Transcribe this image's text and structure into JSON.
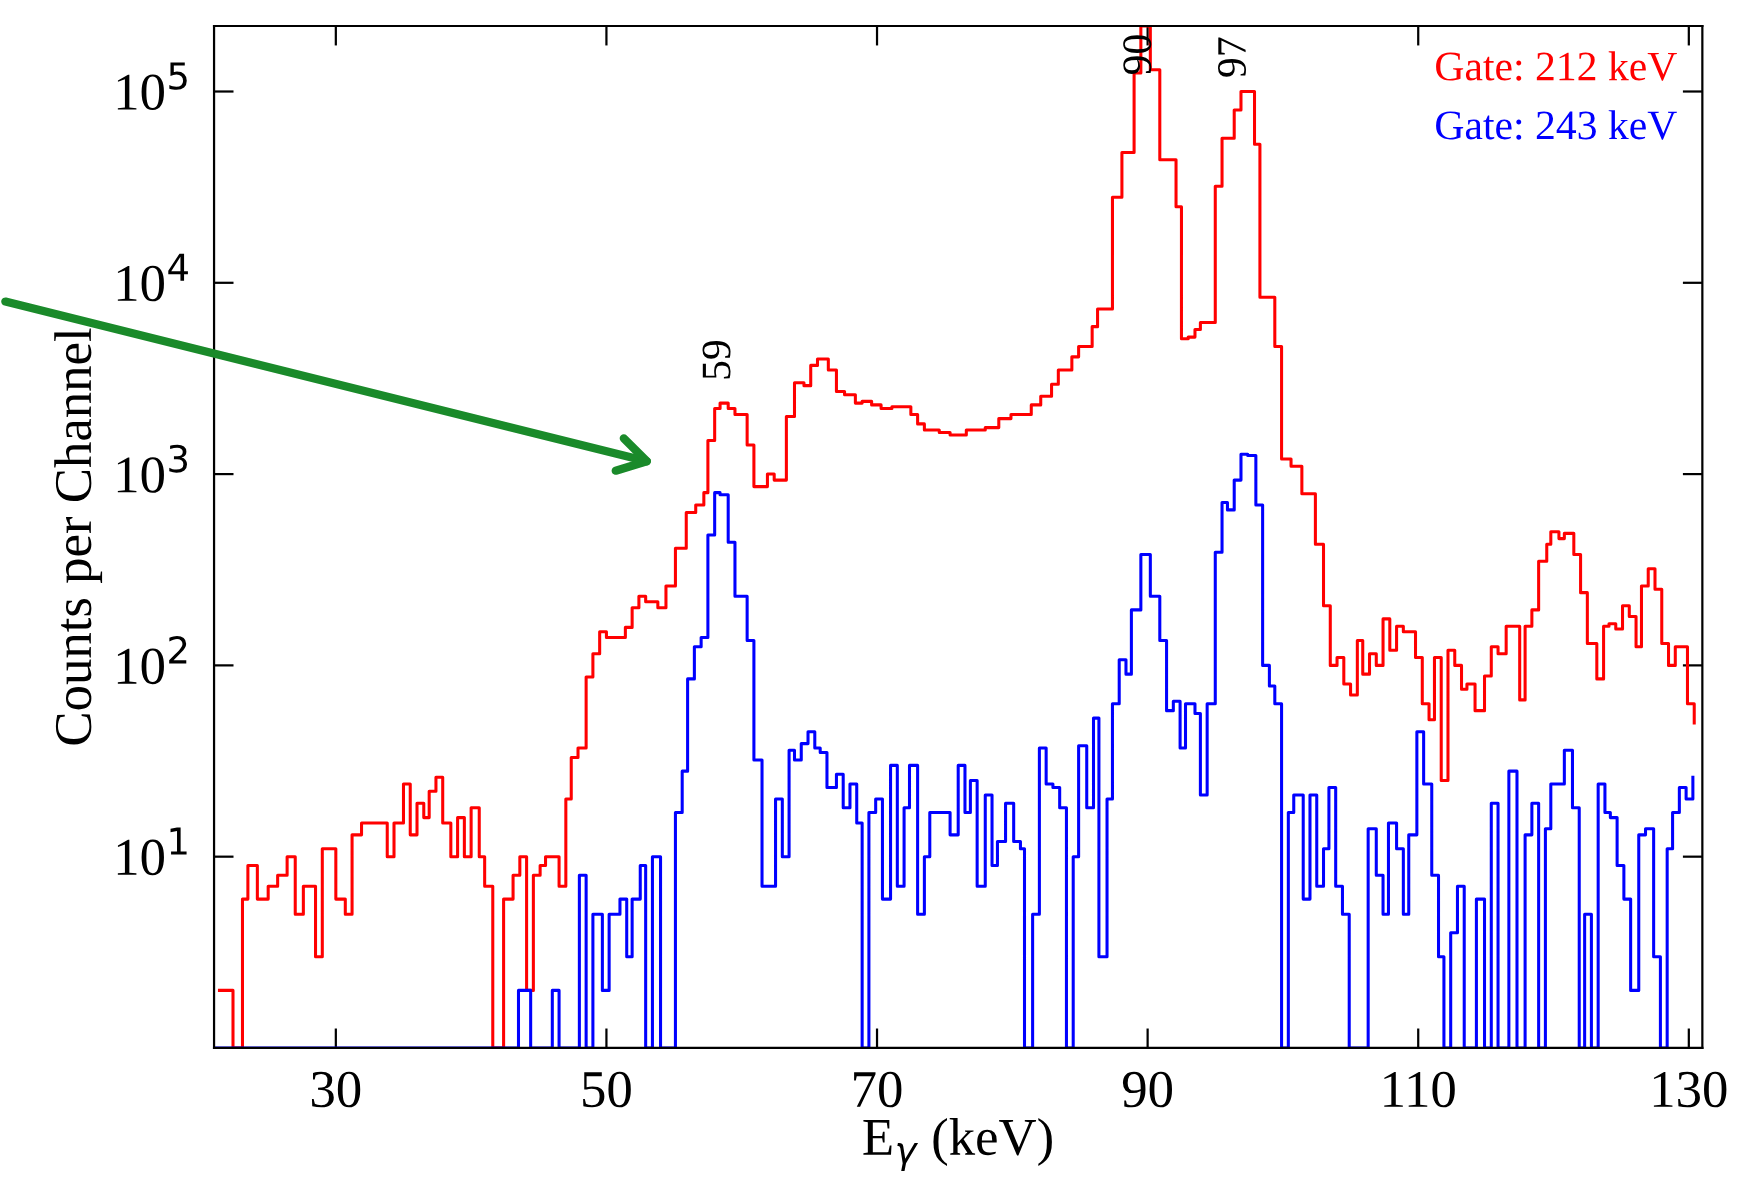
{
  "chart_data": {
    "type": "step",
    "xlabel": "E$_{γ}$ (keV)",
    "ylabel": "Counts per Channel",
    "log": "y",
    "xlim": [
      21,
      131
    ],
    "xticks": [
      30,
      50,
      70,
      90,
      110,
      130
    ],
    "ylim": [
      1,
      220000
    ],
    "yticks": [
      {
        "value": 10,
        "label": "10$^{1}$"
      },
      {
        "value": 100,
        "label": "10$^{2}$"
      },
      {
        "value": 1000,
        "label": "10$^{3}$"
      },
      {
        "value": 10000,
        "label": "10$^{4}$"
      },
      {
        "value": 100000,
        "label": "10$^{5}$"
      }
    ],
    "grid": false,
    "legend": "top right",
    "marker": "none",
    "line_style": "solid",
    "annotations": [
      {
        "text": "59",
        "x": 58.4,
        "y": 2350
      },
      {
        "text": "90",
        "x": 89.5,
        "y": 93000
      },
      {
        "text": "97",
        "x": 96.5,
        "y": 90000
      }
    ],
    "series": [
      {
        "name": "Gate: 212 keV",
        "color": "#ff0000",
        "x": [
          21.4,
          22.4,
          23.1,
          23.5,
          24.2,
          25.0,
          25.7,
          26.4,
          27.0,
          27.6,
          28.5,
          29.0,
          30.0,
          30.7,
          31.2,
          31.9,
          33.8,
          34.3,
          35.0,
          35.5,
          36.0,
          36.5,
          36.9,
          37.4,
          37.9,
          38.5,
          39.0,
          39.5,
          40.0,
          40.6,
          41.0,
          41.6,
          42.4,
          43.1,
          43.6,
          44.1,
          44.6,
          45.1,
          45.5,
          46.5,
          47.0,
          47.4,
          47.9,
          48.5,
          49.0,
          49.5,
          50.0,
          51.4,
          51.9,
          52.4,
          52.9,
          53.8,
          54.4,
          55.1,
          55.9,
          56.6,
          57.2,
          57.5,
          58.0,
          58.4,
          59.0,
          59.5,
          60.4,
          60.9,
          61.9,
          62.4,
          63.3,
          63.9,
          64.6,
          65.1,
          65.6,
          66.4,
          67.0,
          67.6,
          68.4,
          68.9,
          69.6,
          70.3,
          71.1,
          72.5,
          73.0,
          73.5,
          74.6,
          75.4,
          76.6,
          78.0,
          79.0,
          79.9,
          81.4,
          82.1,
          82.9,
          83.4,
          84.4,
          84.9,
          85.9,
          86.3,
          87.4,
          88.1,
          89.0,
          89.5,
          90.2,
          90.9,
          92.1,
          92.5,
          93.0,
          93.5,
          93.9,
          95.0,
          95.5,
          96.4,
          96.9,
          97.9,
          98.3,
          99.4,
          99.9,
          100.6,
          101.4,
          102.4,
          103.0,
          103.5,
          104.0,
          104.5,
          105.0,
          105.5,
          105.9,
          106.4,
          106.9,
          107.4,
          107.9,
          108.4,
          108.9,
          109.8,
          110.3,
          110.8,
          111.2,
          111.7,
          112.2,
          112.7,
          113.2,
          113.6,
          114.2,
          114.9,
          115.4,
          115.9,
          116.5,
          117.5,
          117.9,
          118.4,
          118.9,
          119.5,
          119.8,
          120.4,
          120.8,
          121.5,
          122.0,
          122.5,
          123.2,
          123.7,
          124.1,
          124.6,
          125.1,
          125.6,
          126.1,
          126.5,
          127.0,
          127.5,
          128.0,
          128.5,
          129.0,
          129.9,
          130.4
        ],
        "values": [
          2,
          1,
          6,
          9,
          6,
          7,
          8,
          10,
          5,
          7,
          3,
          11,
          6,
          5,
          13,
          15,
          10,
          15,
          24,
          13,
          19,
          16,
          22,
          26,
          15,
          10,
          16,
          10,
          18,
          10,
          7,
          1,
          6,
          8,
          10,
          2,
          8,
          9,
          10,
          7,
          20,
          33,
          37,
          87,
          115,
          150,
          140,
          158,
          200,
          230,
          215,
          200,
          260,
          410,
          630,
          690,
          800,
          1500,
          2200,
          2350,
          2200,
          2050,
          1420,
          860,
          1000,
          930,
          2000,
          3000,
          2900,
          3700,
          4000,
          3500,
          2700,
          2600,
          2350,
          2400,
          2300,
          2200,
          2250,
          2050,
          1830,
          1700,
          1650,
          1600,
          1700,
          1750,
          1950,
          2050,
          2300,
          2550,
          2950,
          3500,
          4100,
          4650,
          5900,
          7300,
          28000,
          48000,
          125000,
          220000,
          130000,
          44000,
          25000,
          5100,
          5200,
          5700,
          6200,
          32000,
          57000,
          80000,
          100000,
          53000,
          8400,
          4650,
          1200,
          1100,
          790,
          430,
          205,
          100,
          110,
          80,
          70,
          135,
          90,
          115,
          100,
          175,
          120,
          160,
          150,
          110,
          63,
          52,
          110,
          25,
          120,
          100,
          75,
          80,
          58,
          88,
          125,
          115,
          160,
          66,
          160,
          195,
          350,
          430,
          500,
          460,
          490,
          380,
          240,
          130,
          85,
          160,
          165,
          155,
          205,
          180,
          125,
          260,
          320,
          250,
          130,
          100,
          125,
          63,
          50
        ]
      },
      {
        "name": "Gate: 243 keV",
        "color": "#0000ff",
        "x": [
          21,
          43.5,
          44.4,
          46.0,
          46.5,
          48.0,
          48.5,
          49.0,
          49.7,
          50.2,
          51.0,
          51.5,
          51.9,
          52.5,
          52.9,
          53.4,
          54.0,
          55.1,
          55.6,
          56.0,
          56.5,
          57.0,
          57.5,
          58.0,
          58.4,
          59.0,
          59.5,
          60.4,
          60.9,
          61.5,
          62.5,
          63.0,
          63.5,
          63.9,
          64.4,
          64.9,
          65.4,
          65.8,
          66.3,
          67.0,
          67.5,
          68.0,
          68.5,
          68.9,
          69.4,
          69.9,
          70.4,
          71.0,
          71.5,
          72.0,
          72.4,
          73.0,
          73.5,
          73.9,
          74.4,
          75.4,
          76.0,
          76.5,
          76.9,
          77.4,
          78.0,
          78.5,
          78.9,
          79.5,
          80.1,
          80.6,
          80.9,
          81.5,
          82.0,
          82.5,
          83.0,
          83.5,
          84.0,
          84.5,
          84.9,
          85.5,
          86.0,
          86.4,
          87.0,
          87.4,
          87.9,
          88.4,
          88.8,
          89.5,
          90.2,
          90.9,
          91.4,
          91.9,
          92.4,
          92.8,
          93.5,
          93.9,
          94.4,
          95.0,
          95.5,
          95.9,
          96.4,
          96.9,
          97.4,
          98.0,
          98.5,
          99.0,
          99.4,
          99.9,
          100.4,
          100.8,
          101.5,
          102.0,
          102.5,
          103.0,
          103.4,
          103.9,
          104.4,
          104.9,
          106.3,
          106.9,
          107.4,
          107.8,
          108.4,
          108.9,
          109.3,
          109.9,
          110.4,
          111.0,
          111.5,
          111.9,
          112.4,
          112.9,
          113.4,
          114.3,
          114.9,
          115.4,
          115.9,
          116.7,
          117.3,
          117.9,
          118.4,
          118.9,
          119.4,
          119.8,
          120.8,
          121.4,
          121.9,
          122.3,
          122.8,
          123.3,
          123.8,
          124.2,
          124.7,
          125.2,
          125.7,
          126.3,
          126.8,
          127.4,
          127.9,
          128.4,
          128.8,
          129.3,
          129.8,
          130.3
        ],
        "values": [
          1,
          2,
          1,
          2,
          1,
          8,
          1,
          5,
          2,
          5,
          6,
          3,
          6,
          9,
          1,
          10,
          1,
          17,
          28,
          85,
          125,
          140,
          480,
          800,
          780,
          440,
          230,
          135,
          32,
          7,
          20,
          10,
          36,
          32,
          39,
          45,
          37,
          35,
          23,
          27,
          18,
          24,
          15,
          1,
          17,
          20,
          6,
          30,
          7,
          18,
          30,
          5,
          10,
          17,
          17,
          13,
          30,
          17,
          25,
          7,
          21,
          9,
          12,
          19,
          12,
          11,
          1,
          5,
          37,
          24,
          23,
          18,
          1,
          10,
          38,
          18,
          53,
          3,
          20,
          63,
          107,
          90,
          195,
          380,
          230,
          135,
          58,
          65,
          37,
          63,
          56,
          21,
          63,
          390,
          710,
          650,
          930,
          1270,
          1250,
          690,
          100,
          78,
          63,
          1,
          17,
          21,
          6,
          21,
          7,
          11,
          23,
          7,
          5,
          1,
          14,
          8,
          5,
          15,
          11,
          5,
          13,
          45,
          24,
          8,
          3,
          1,
          4,
          7,
          1,
          6,
          1,
          19,
          1,
          28,
          1,
          13,
          19,
          1,
          14,
          24,
          36,
          18,
          1,
          5,
          1,
          24,
          17,
          16,
          9,
          6,
          2,
          13,
          14,
          3,
          1,
          11,
          17,
          23,
          20,
          26
        ]
      }
    ]
  }
}
